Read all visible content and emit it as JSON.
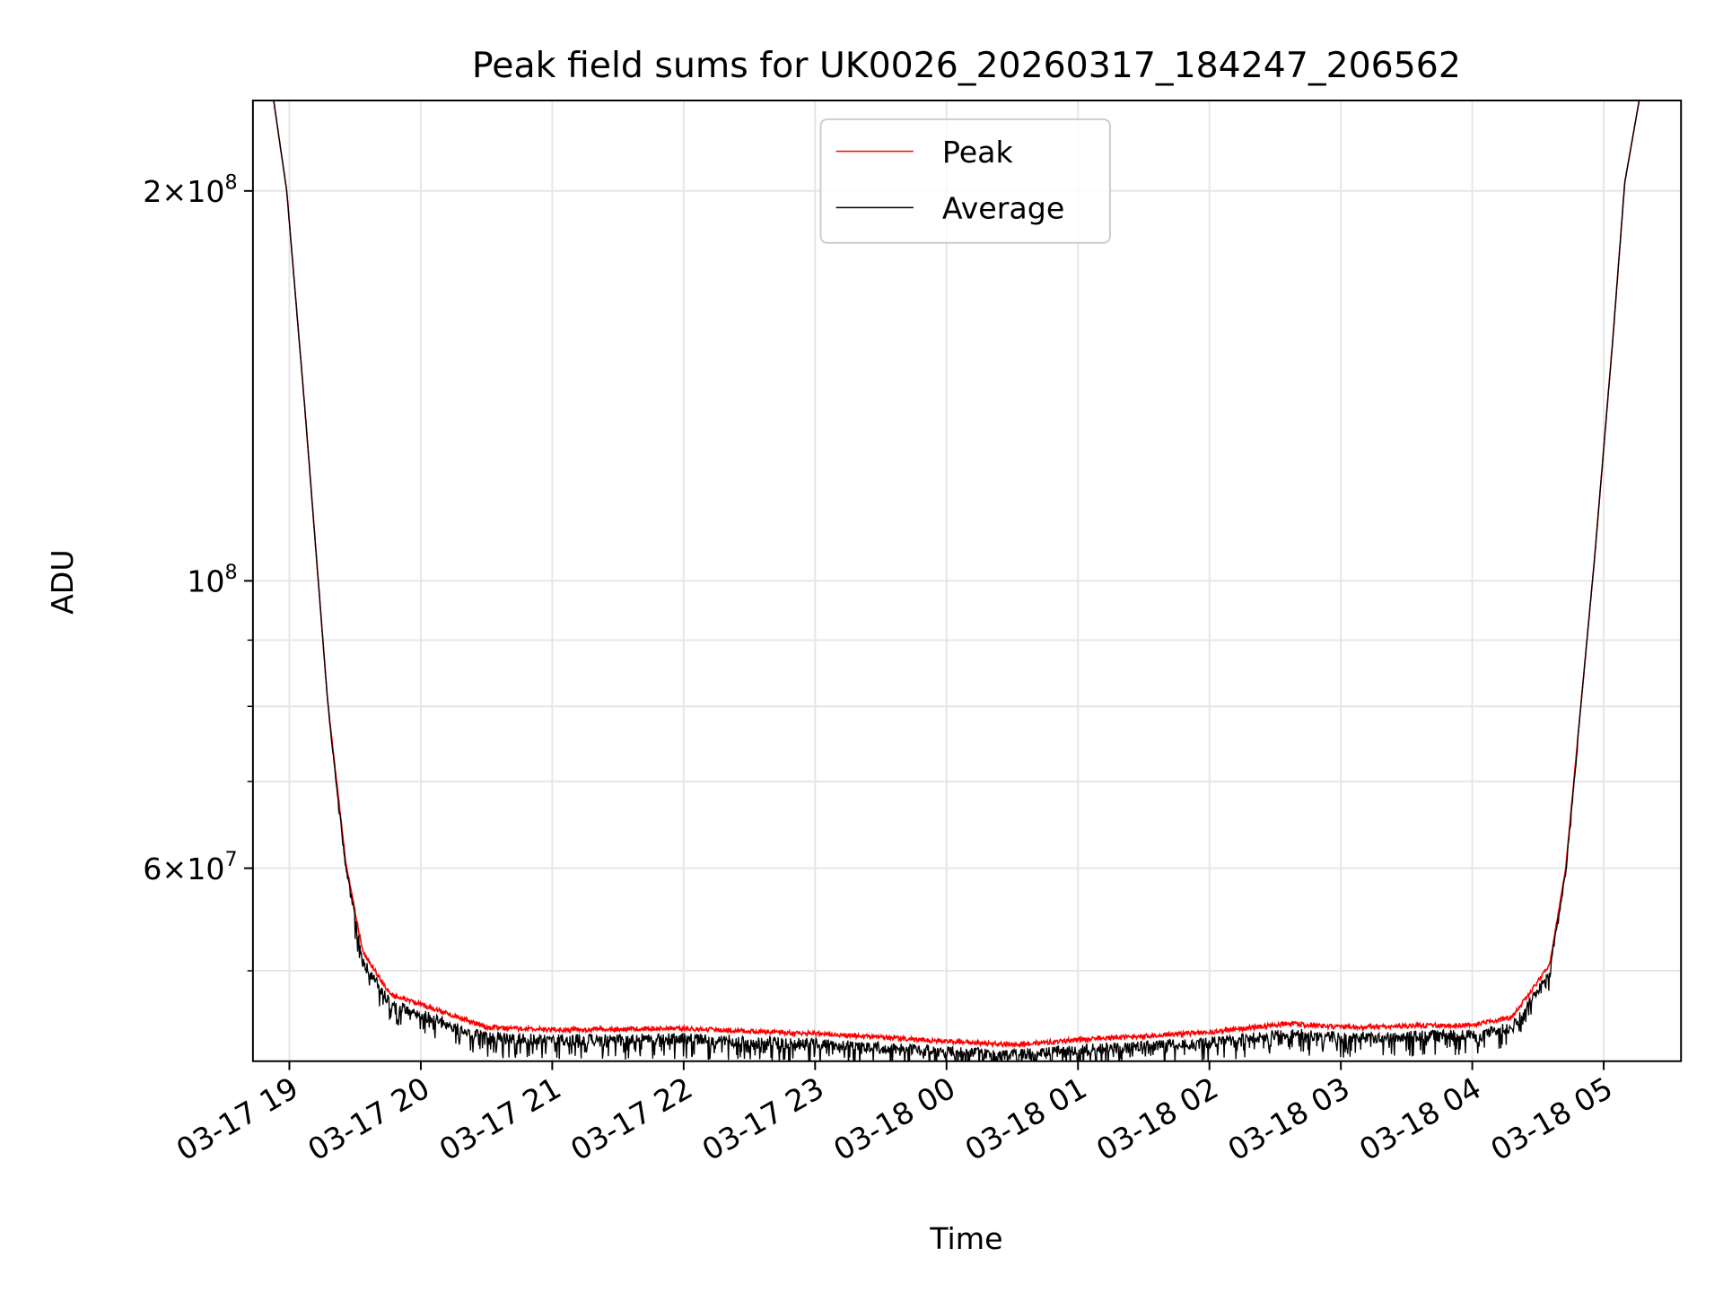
{
  "chart_data": {
    "type": "line",
    "title": "Peak field sums for UK0026_20260317_184247_206562",
    "xlabel": "Time",
    "ylabel": "ADU",
    "yscale": "log",
    "ylim": [
      42600000,
      235000000
    ],
    "xlim_hours_from_0317_1900": [
      -0.28,
      10.58
    ],
    "grid": true,
    "legend_position": "top-center",
    "x_ticks": [
      {
        "hour": 0,
        "label": "03-17 19"
      },
      {
        "hour": 1,
        "label": "03-17 20"
      },
      {
        "hour": 2,
        "label": "03-17 21"
      },
      {
        "hour": 3,
        "label": "03-17 22"
      },
      {
        "hour": 4,
        "label": "03-17 23"
      },
      {
        "hour": 5,
        "label": "03-18 00"
      },
      {
        "hour": 6,
        "label": "03-18 01"
      },
      {
        "hour": 7,
        "label": "03-18 02"
      },
      {
        "hour": 8,
        "label": "03-18 03"
      },
      {
        "hour": 9,
        "label": "03-18 04"
      },
      {
        "hour": 10,
        "label": "03-18 05"
      }
    ],
    "y_major_ticks": [
      {
        "value": 200000000,
        "mant": "2",
        "exp": "8"
      },
      {
        "value": 100000000,
        "mant": "",
        "exp": "8"
      },
      {
        "value": 60000000,
        "mant": "6",
        "exp": "7"
      }
    ],
    "y_minor_ticks": [
      90000000,
      80000000,
      70000000,
      50000000
    ],
    "series": [
      {
        "name": "Peak",
        "color": "#ff0000",
        "points_hours_value": [
          [
            -0.12,
            235000000
          ],
          [
            -0.02,
            200000000
          ],
          [
            0.12,
            135000000
          ],
          [
            0.29,
            81000000
          ],
          [
            0.43,
            60600000
          ],
          [
            0.56,
            51900000
          ],
          [
            0.77,
            48100000
          ],
          [
            1.08,
            47000000
          ],
          [
            1.5,
            45400000
          ],
          [
            2.0,
            45200000
          ],
          [
            3.0,
            45300000
          ],
          [
            4.0,
            44900000
          ],
          [
            5.0,
            44300000
          ],
          [
            5.5,
            44000000
          ],
          [
            6.0,
            44400000
          ],
          [
            7.0,
            45000000
          ],
          [
            7.6,
            45700000
          ],
          [
            8.0,
            45400000
          ],
          [
            9.0,
            45600000
          ],
          [
            9.3,
            46200000
          ],
          [
            9.59,
            50700000
          ],
          [
            9.71,
            60000000
          ],
          [
            9.82,
            78900000
          ],
          [
            9.93,
            104000000
          ],
          [
            10.07,
            154000000
          ],
          [
            10.16,
            203000000
          ],
          [
            10.27,
            235000000
          ]
        ]
      },
      {
        "name": "Average",
        "color": "#000000",
        "relative_to_peak": "approximately 2-6% below Peak on the plateau with high-frequency noise; equal on steep twilight slopes"
      }
    ]
  }
}
